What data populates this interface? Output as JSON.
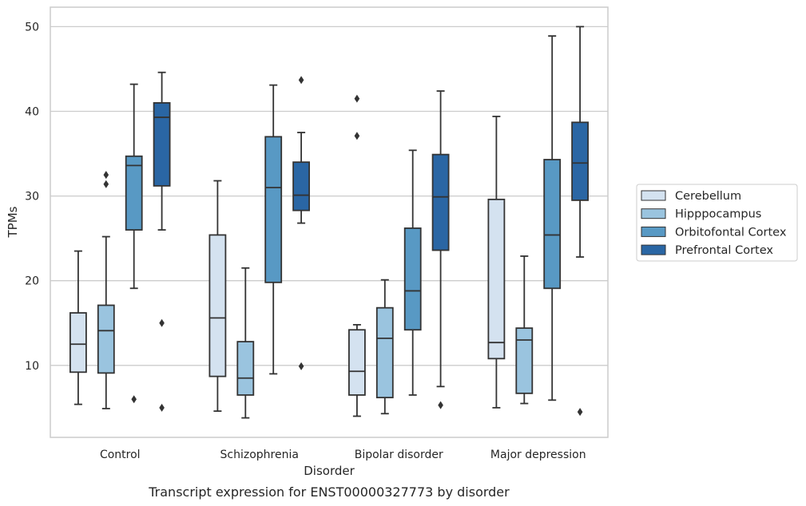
{
  "chart_data": {
    "type": "box",
    "title": "",
    "caption": "Transcript expression for ENST00000327773 by disorder",
    "xlabel": "Disorder",
    "ylabel": "TPMs",
    "ylim": [
      1.5,
      52.3
    ],
    "yticks": [
      10,
      20,
      30,
      40,
      50
    ],
    "grid": "horizontal",
    "legend_position": "right",
    "categories": [
      "Control",
      "Schizophrenia",
      "Bipolar disorder",
      "Major depression"
    ],
    "series": [
      {
        "name": "Cerebellum",
        "color": "#d4e2f0",
        "boxes": [
          {
            "whislo": 5.4,
            "q1": 9.2,
            "med": 12.5,
            "q3": 16.2,
            "whishi": 23.5,
            "fliers": []
          },
          {
            "whislo": 4.6,
            "q1": 8.7,
            "med": 15.6,
            "q3": 25.4,
            "whishi": 31.8,
            "fliers": []
          },
          {
            "whislo": 4.0,
            "q1": 6.5,
            "med": 9.3,
            "q3": 14.2,
            "whishi": 14.8,
            "fliers": [
              41.5,
              37.1
            ]
          },
          {
            "whislo": 5.0,
            "q1": 10.8,
            "med": 12.7,
            "q3": 29.6,
            "whishi": 39.4,
            "fliers": []
          }
        ]
      },
      {
        "name": "Hipppocampus",
        "color": "#9ac4df",
        "boxes": [
          {
            "whislo": 4.9,
            "q1": 9.1,
            "med": 14.1,
            "q3": 17.1,
            "whishi": 25.2,
            "fliers": [
              32.5,
              31.4
            ]
          },
          {
            "whislo": 3.8,
            "q1": 6.5,
            "med": 8.5,
            "q3": 12.8,
            "whishi": 21.5,
            "fliers": []
          },
          {
            "whislo": 4.3,
            "q1": 6.2,
            "med": 13.2,
            "q3": 16.8,
            "whishi": 20.1,
            "fliers": []
          },
          {
            "whislo": 5.5,
            "q1": 6.7,
            "med": 13.0,
            "q3": 14.4,
            "whishi": 22.9,
            "fliers": []
          }
        ]
      },
      {
        "name": "Orbitofontal Cortex",
        "color": "#5899c4",
        "boxes": [
          {
            "whislo": 19.1,
            "q1": 26.0,
            "med": 33.6,
            "q3": 34.7,
            "whishi": 43.2,
            "fliers": [
              6.0
            ]
          },
          {
            "whislo": 9.0,
            "q1": 19.8,
            "med": 31.0,
            "q3": 37.0,
            "whishi": 43.1,
            "fliers": []
          },
          {
            "whislo": 6.5,
            "q1": 14.2,
            "med": 18.8,
            "q3": 26.2,
            "whishi": 35.4,
            "fliers": []
          },
          {
            "whislo": 5.9,
            "q1": 19.1,
            "med": 25.4,
            "q3": 34.3,
            "whishi": 48.9,
            "fliers": []
          }
        ]
      },
      {
        "name": "Prefrontal Cortex",
        "color": "#2a66a4",
        "boxes": [
          {
            "whislo": 26.0,
            "q1": 31.2,
            "med": 39.3,
            "q3": 41.0,
            "whishi": 44.6,
            "fliers": [
              15.0,
              5.0
            ]
          },
          {
            "whislo": 26.8,
            "q1": 28.3,
            "med": 30.1,
            "q3": 34.0,
            "whishi": 37.5,
            "fliers": [
              43.7,
              9.9
            ]
          },
          {
            "whislo": 7.5,
            "q1": 23.6,
            "med": 29.9,
            "q3": 34.9,
            "whishi": 42.4,
            "fliers": [
              5.3
            ]
          },
          {
            "whislo": 22.8,
            "q1": 29.5,
            "med": 33.9,
            "q3": 38.7,
            "whishi": 50.0,
            "fliers": [
              4.5
            ]
          }
        ]
      }
    ]
  },
  "style": {
    "frame_color": "#cccccc",
    "grid_color": "#cccccc",
    "line_color": "#333333",
    "text_color": "#262626"
  }
}
